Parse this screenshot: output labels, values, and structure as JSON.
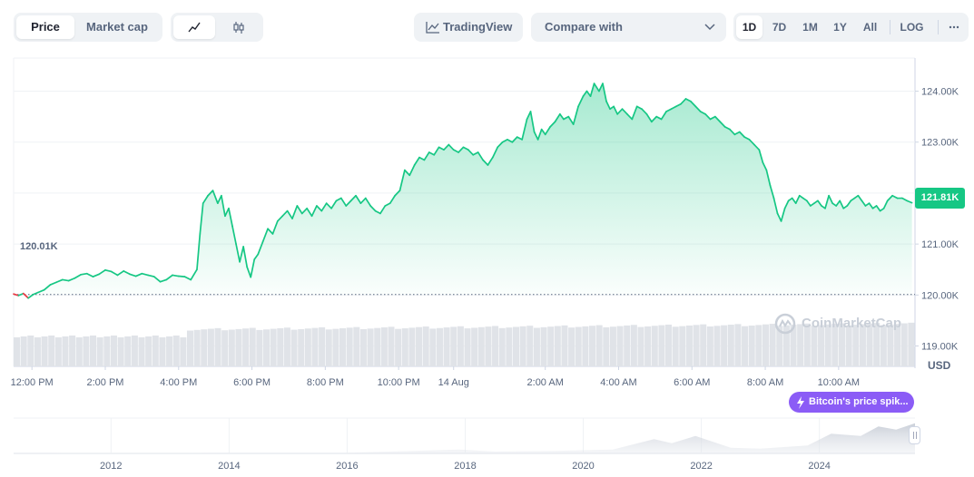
{
  "toolbar": {
    "view_tabs": [
      "Price",
      "Market cap"
    ],
    "active_view": "Price",
    "chart_styles": [
      "line-chart-icon",
      "candlestick-icon"
    ],
    "active_style": "line-chart-icon",
    "tradingview_label": "TradingView",
    "compare_label": "Compare with",
    "ranges": [
      "1D",
      "7D",
      "1M",
      "1Y",
      "All"
    ],
    "active_range": "1D",
    "log_label": "LOG",
    "more_icon": "ellipsis-icon"
  },
  "colors": {
    "up": "#16c784",
    "down": "#ea3943",
    "grid": "#eff2f5",
    "axis_text": "#58667e",
    "event": "#8b5cf6",
    "volume": "#e0e3e8"
  },
  "labels": {
    "current_price": "121.81K",
    "open_price": "120.01K",
    "currency": "USD",
    "watermark": "CoinMarketCap",
    "event": "Bitcoin's price spik..."
  },
  "chart_data": {
    "type": "area",
    "ylim": [
      118600,
      124650
    ],
    "baseline": 120010,
    "y_ticks": [
      {
        "value": 124000,
        "label": "124.00K"
      },
      {
        "value": 123000,
        "label": "123.00K"
      },
      {
        "value": 122000,
        "label": ""
      },
      {
        "value": 121000,
        "label": "121.00K"
      },
      {
        "value": 120000,
        "label": "120.00K"
      },
      {
        "value": 119000,
        "label": "119.00K"
      }
    ],
    "x_ticks": [
      "12:00 PM",
      "2:00 PM",
      "4:00 PM",
      "6:00 PM",
      "8:00 PM",
      "10:00 PM",
      "14 Aug",
      "2:00 AM",
      "4:00 AM",
      "6:00 AM",
      "8:00 AM",
      "10:00 AM"
    ],
    "x_tick_offsets_min": [
      30,
      150,
      270,
      390,
      510,
      630,
      720,
      870,
      990,
      1110,
      1230,
      1350
    ],
    "x_range_min": [
      0,
      1475
    ],
    "points": [
      [
        0,
        120020
      ],
      [
        8,
        119990
      ],
      [
        16,
        120030
      ],
      [
        24,
        119940
      ],
      [
        32,
        120010
      ],
      [
        40,
        120050
      ],
      [
        50,
        120100
      ],
      [
        60,
        120200
      ],
      [
        70,
        120250
      ],
      [
        80,
        120300
      ],
      [
        90,
        120280
      ],
      [
        100,
        120330
      ],
      [
        110,
        120400
      ],
      [
        120,
        120420
      ],
      [
        130,
        120360
      ],
      [
        140,
        120410
      ],
      [
        150,
        120490
      ],
      [
        160,
        120460
      ],
      [
        170,
        120390
      ],
      [
        180,
        120470
      ],
      [
        190,
        120410
      ],
      [
        200,
        120370
      ],
      [
        210,
        120420
      ],
      [
        220,
        120390
      ],
      [
        230,
        120360
      ],
      [
        240,
        120260
      ],
      [
        250,
        120300
      ],
      [
        260,
        120390
      ],
      [
        270,
        120370
      ],
      [
        280,
        120360
      ],
      [
        290,
        120300
      ],
      [
        300,
        120500
      ],
      [
        305,
        121200
      ],
      [
        310,
        121800
      ],
      [
        318,
        121950
      ],
      [
        326,
        122050
      ],
      [
        334,
        121800
      ],
      [
        340,
        121950
      ],
      [
        346,
        121550
      ],
      [
        352,
        121700
      ],
      [
        358,
        121350
      ],
      [
        364,
        121000
      ],
      [
        370,
        120650
      ],
      [
        376,
        120950
      ],
      [
        382,
        120550
      ],
      [
        388,
        120350
      ],
      [
        394,
        120700
      ],
      [
        400,
        120800
      ],
      [
        408,
        121050
      ],
      [
        416,
        121300
      ],
      [
        424,
        121200
      ],
      [
        432,
        121450
      ],
      [
        440,
        121550
      ],
      [
        448,
        121650
      ],
      [
        456,
        121500
      ],
      [
        464,
        121750
      ],
      [
        472,
        121600
      ],
      [
        480,
        121700
      ],
      [
        488,
        121550
      ],
      [
        496,
        121750
      ],
      [
        504,
        121650
      ],
      [
        512,
        121800
      ],
      [
        520,
        121700
      ],
      [
        528,
        121850
      ],
      [
        536,
        121900
      ],
      [
        544,
        121750
      ],
      [
        552,
        121850
      ],
      [
        560,
        121950
      ],
      [
        568,
        121800
      ],
      [
        576,
        121900
      ],
      [
        584,
        121750
      ],
      [
        592,
        121650
      ],
      [
        600,
        121600
      ],
      [
        608,
        121750
      ],
      [
        616,
        121800
      ],
      [
        624,
        121950
      ],
      [
        632,
        122050
      ],
      [
        640,
        122450
      ],
      [
        648,
        122350
      ],
      [
        656,
        122550
      ],
      [
        664,
        122700
      ],
      [
        672,
        122650
      ],
      [
        680,
        122800
      ],
      [
        688,
        122750
      ],
      [
        696,
        122900
      ],
      [
        704,
        122850
      ],
      [
        712,
        122950
      ],
      [
        720,
        122850
      ],
      [
        728,
        122800
      ],
      [
        736,
        122900
      ],
      [
        744,
        122850
      ],
      [
        752,
        122750
      ],
      [
        760,
        122800
      ],
      [
        768,
        122650
      ],
      [
        776,
        122550
      ],
      [
        784,
        122700
      ],
      [
        792,
        122900
      ],
      [
        800,
        123000
      ],
      [
        808,
        123050
      ],
      [
        816,
        123000
      ],
      [
        824,
        123100
      ],
      [
        832,
        123050
      ],
      [
        840,
        123450
      ],
      [
        846,
        123600
      ],
      [
        852,
        123200
      ],
      [
        858,
        123050
      ],
      [
        864,
        123250
      ],
      [
        870,
        123150
      ],
      [
        878,
        123300
      ],
      [
        886,
        123400
      ],
      [
        894,
        123550
      ],
      [
        900,
        123450
      ],
      [
        908,
        123500
      ],
      [
        916,
        123350
      ],
      [
        924,
        123700
      ],
      [
        932,
        123900
      ],
      [
        938,
        124000
      ],
      [
        944,
        123900
      ],
      [
        950,
        124150
      ],
      [
        958,
        124000
      ],
      [
        964,
        124150
      ],
      [
        970,
        123800
      ],
      [
        976,
        123650
      ],
      [
        982,
        123700
      ],
      [
        988,
        123550
      ],
      [
        996,
        123650
      ],
      [
        1004,
        123550
      ],
      [
        1012,
        123450
      ],
      [
        1020,
        123700
      ],
      [
        1028,
        123650
      ],
      [
        1036,
        123550
      ],
      [
        1044,
        123400
      ],
      [
        1052,
        123500
      ],
      [
        1060,
        123450
      ],
      [
        1068,
        123600
      ],
      [
        1076,
        123650
      ],
      [
        1084,
        123700
      ],
      [
        1092,
        123750
      ],
      [
        1100,
        123850
      ],
      [
        1108,
        123800
      ],
      [
        1116,
        123700
      ],
      [
        1124,
        123600
      ],
      [
        1132,
        123550
      ],
      [
        1140,
        123450
      ],
      [
        1148,
        123500
      ],
      [
        1156,
        123400
      ],
      [
        1164,
        123300
      ],
      [
        1172,
        123250
      ],
      [
        1180,
        123150
      ],
      [
        1188,
        123200
      ],
      [
        1196,
        123100
      ],
      [
        1204,
        123050
      ],
      [
        1212,
        122950
      ],
      [
        1220,
        122850
      ],
      [
        1226,
        122600
      ],
      [
        1232,
        122450
      ],
      [
        1238,
        122150
      ],
      [
        1244,
        121900
      ],
      [
        1250,
        121600
      ],
      [
        1256,
        121450
      ],
      [
        1262,
        121700
      ],
      [
        1268,
        121850
      ],
      [
        1274,
        121900
      ],
      [
        1280,
        121800
      ],
      [
        1286,
        121950
      ],
      [
        1292,
        121900
      ],
      [
        1298,
        121850
      ],
      [
        1304,
        121750
      ],
      [
        1310,
        121800
      ],
      [
        1316,
        121850
      ],
      [
        1322,
        121750
      ],
      [
        1328,
        121700
      ],
      [
        1334,
        121950
      ],
      [
        1340,
        121800
      ],
      [
        1346,
        121750
      ],
      [
        1352,
        121850
      ],
      [
        1358,
        121700
      ],
      [
        1364,
        121750
      ],
      [
        1370,
        121850
      ],
      [
        1376,
        121900
      ],
      [
        1382,
        121950
      ],
      [
        1388,
        121850
      ],
      [
        1394,
        121750
      ],
      [
        1400,
        121800
      ],
      [
        1406,
        121700
      ],
      [
        1412,
        121750
      ],
      [
        1418,
        121650
      ],
      [
        1424,
        121700
      ],
      [
        1430,
        121850
      ],
      [
        1438,
        121950
      ],
      [
        1446,
        121900
      ],
      [
        1454,
        121900
      ],
      [
        1462,
        121850
      ],
      [
        1470,
        121810
      ]
    ]
  },
  "overview": {
    "years": [
      "2012",
      "2014",
      "2016",
      "2018",
      "2020",
      "2022",
      "2024"
    ]
  }
}
